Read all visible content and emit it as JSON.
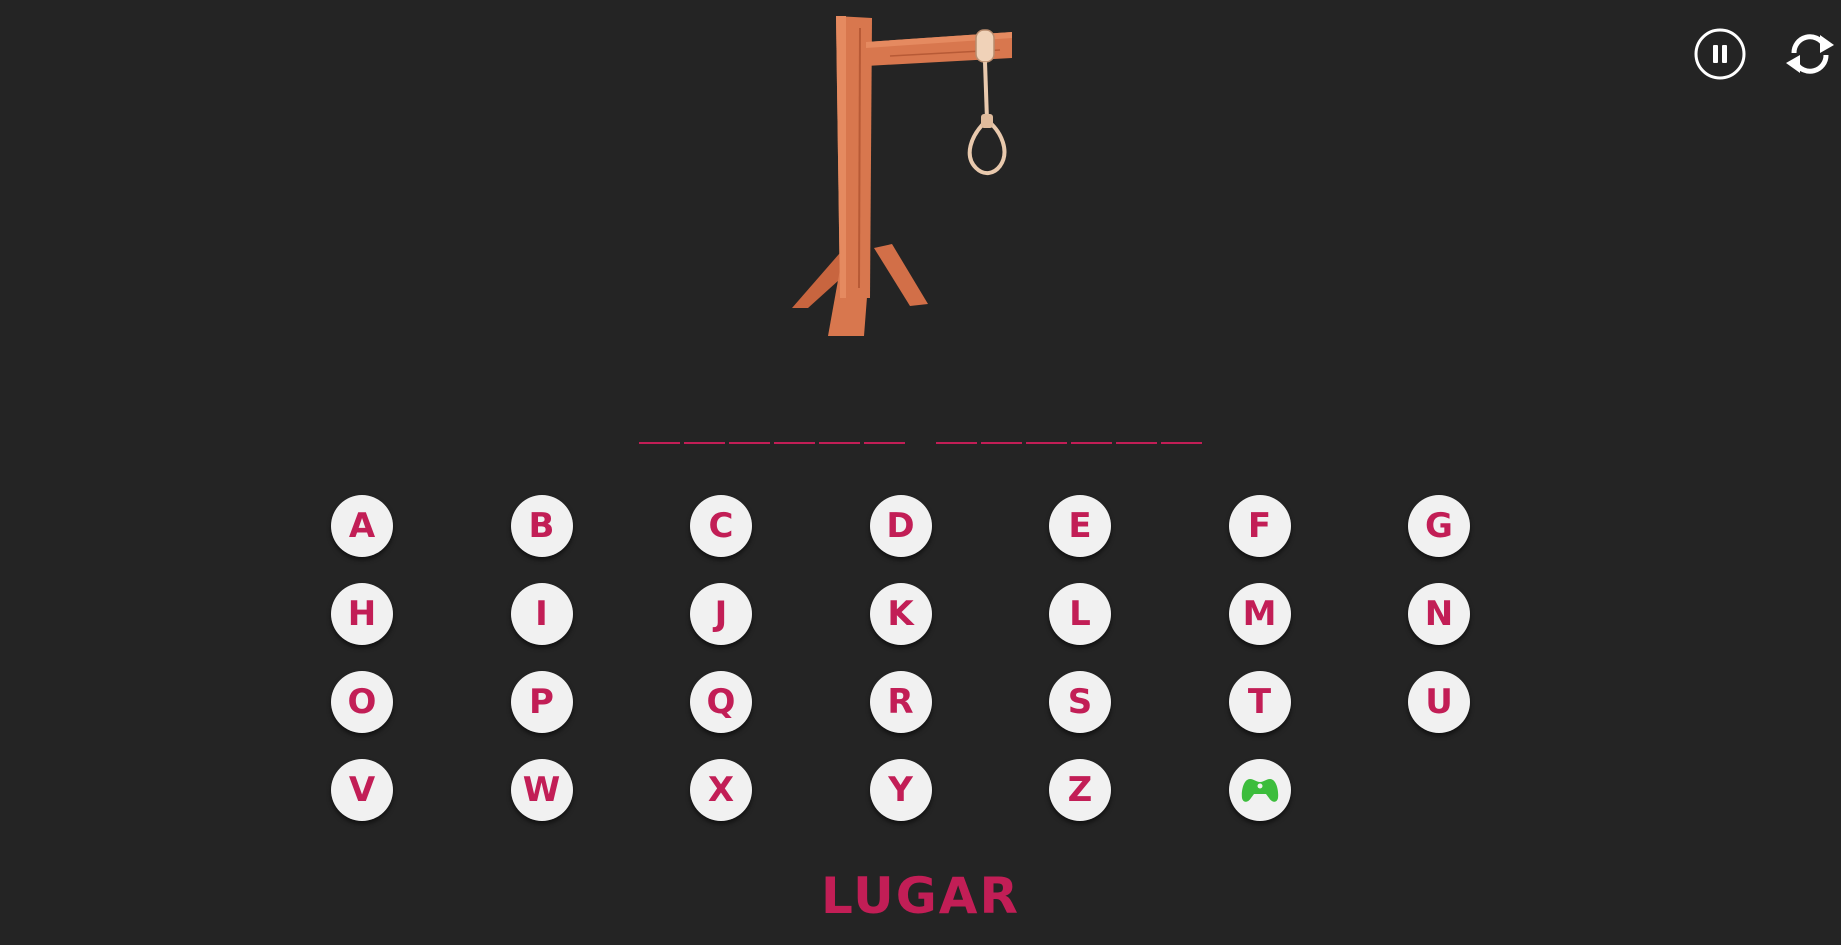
{
  "game": {
    "category": "LUGAR",
    "word_groups": [
      6,
      6
    ],
    "accent_color": "#c21e56",
    "gamepad_color": "#3cbd3c",
    "background_color": "#242424"
  },
  "controls": {
    "pause_icon": "pause-icon",
    "restart_icon": "restart-icon"
  },
  "keyboard": {
    "letters": [
      "A",
      "B",
      "C",
      "D",
      "E",
      "F",
      "G",
      "H",
      "I",
      "J",
      "K",
      "L",
      "M",
      "N",
      "O",
      "P",
      "Q",
      "R",
      "S",
      "T",
      "U",
      "V",
      "W",
      "X",
      "Y",
      "Z"
    ],
    "extra_key_icon": "gamepad-icon"
  }
}
